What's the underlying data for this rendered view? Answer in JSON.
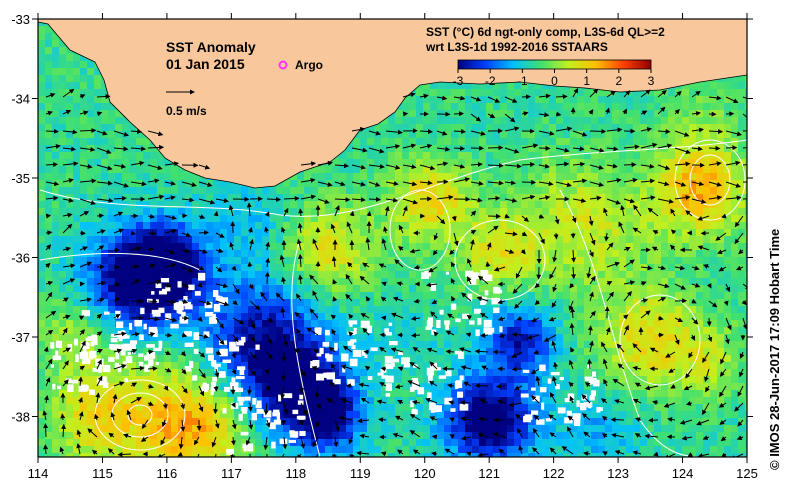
{
  "map": {
    "title": "SST Anomaly",
    "date": "01 Jan 2015",
    "argo_label": "Argo",
    "scale_label": "0.5 m/s",
    "product_line1": "SST (°C) 6d ngt-only comp, L3S-6d QL>=2",
    "product_line2": "wrt L3S-1d 1992-2016 SSTAARS",
    "credit": "© IMOS 28-Jun-2017 17:09 Hobart Time",
    "colors": {
      "land": "#f8c89c",
      "ocean_base": "#2ec850",
      "no_data": "#ffffff",
      "contour": "#ffffff",
      "argo_marker": "#ff33ff"
    }
  },
  "colorbar": {
    "min": -3,
    "max": 3,
    "ticks": [
      "-3",
      "-2",
      "-1",
      "0",
      "1",
      "2",
      "3"
    ],
    "colors": [
      "#000080",
      "#0040ff",
      "#00c0ff",
      "#40e070",
      "#c0f020",
      "#ffc000",
      "#ff4000",
      "#900000"
    ]
  },
  "axes": {
    "lon_ticks": [
      "114",
      "115",
      "116",
      "117",
      "118",
      "119",
      "120",
      "121",
      "122",
      "123",
      "124",
      "125"
    ],
    "lat_ticks": [
      "-33",
      "-34",
      "-35",
      "-36",
      "-37",
      "-38"
    ]
  }
}
